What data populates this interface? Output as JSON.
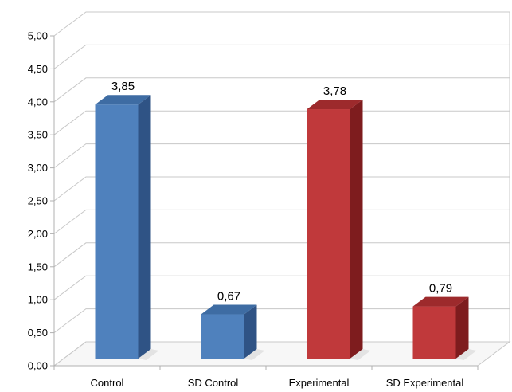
{
  "chart_data": {
    "type": "bar",
    "categories": [
      "Control",
      "SD Control",
      "Experimental",
      "SD Experimental"
    ],
    "values": [
      3.85,
      0.67,
      3.78,
      0.79
    ],
    "value_labels": [
      "3,85",
      "0,67",
      "3,78",
      "0,79"
    ],
    "colors": [
      "blue",
      "blue",
      "red",
      "red"
    ],
    "yticks": [
      "0,00",
      "0,50",
      "1,00",
      "1,50",
      "2,00",
      "2,50",
      "3,00",
      "3,50",
      "4,00",
      "4,50",
      "5,00"
    ],
    "ylim": [
      0,
      5
    ],
    "grid": true,
    "legend": "none",
    "style": "3d-column"
  },
  "palette": {
    "blue": {
      "front": "#4f81bd",
      "side": "#2f5385",
      "top": "#3e6ca3"
    },
    "red": {
      "front": "#c0393b",
      "side": "#7e1c1e",
      "top": "#9d2a2c"
    },
    "grid": "#c8c8c8",
    "wall": "#ffffff",
    "floor": "#f7f7f7"
  }
}
